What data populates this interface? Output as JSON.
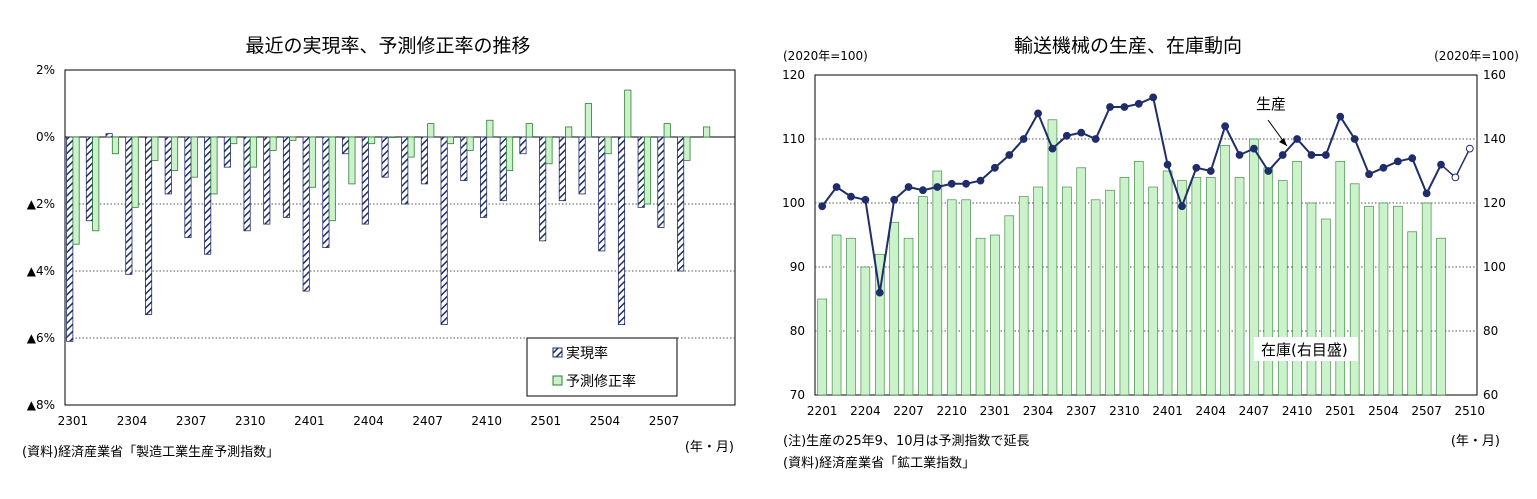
{
  "colors": {
    "navy": "#1f2d6b",
    "green_fill": "#ccf2cc",
    "green_edge": "#2e7d32",
    "grid": "#000000"
  },
  "chart_data": [
    {
      "type": "bar",
      "title": "最近の実現率、予測修正率の推移",
      "ylim": [
        -8,
        2
      ],
      "y_ticks": [
        {
          "value": 2,
          "label": "2%"
        },
        {
          "value": 0,
          "label": "0%"
        },
        {
          "value": -2,
          "label": "▲2%"
        },
        {
          "value": -4,
          "label": "▲4%"
        },
        {
          "value": -6,
          "label": "▲6%"
        },
        {
          "value": -8,
          "label": "▲8%"
        }
      ],
      "x_tick_labels": [
        "2301",
        "2304",
        "2307",
        "2310",
        "2401",
        "2404",
        "2407",
        "2410",
        "2501",
        "2504",
        "2507"
      ],
      "categories": [
        "2301",
        "2302",
        "2303",
        "2304",
        "2305",
        "2306",
        "2307",
        "2308",
        "2309",
        "2310",
        "2311",
        "2312",
        "2401",
        "2402",
        "2403",
        "2404",
        "2405",
        "2406",
        "2407",
        "2408",
        "2409",
        "2410",
        "2411",
        "2412",
        "2501",
        "2502",
        "2503",
        "2504",
        "2505",
        "2506",
        "2507",
        "2508",
        "2509",
        "2510"
      ],
      "series": [
        {
          "name": "実現率",
          "values": [
            -6.1,
            -2.5,
            0.1,
            -4.1,
            -5.3,
            -1.7,
            -3.0,
            -3.5,
            -0.9,
            -2.8,
            -2.6,
            -2.4,
            -4.6,
            -3.3,
            -0.5,
            -2.6,
            -1.2,
            -2.0,
            -1.4,
            -5.6,
            -1.3,
            -2.4,
            -1.9,
            -0.5,
            -3.1,
            -1.9,
            -1.7,
            -3.4,
            -5.6,
            -2.1,
            -2.7,
            -4.0,
            null,
            null
          ]
        },
        {
          "name": "予測修正率",
          "values": [
            -3.2,
            -2.8,
            -0.5,
            -2.1,
            -0.7,
            -1.0,
            -1.2,
            -1.7,
            -0.2,
            -0.9,
            -0.4,
            -0.1,
            -1.5,
            -2.5,
            -1.4,
            -0.2,
            0.0,
            -0.6,
            0.4,
            -0.2,
            -0.4,
            0.5,
            -1.0,
            0.4,
            -0.8,
            0.3,
            1.0,
            -0.5,
            1.4,
            -2.0,
            0.4,
            -0.7,
            0.3,
            null
          ]
        }
      ],
      "x_unit": "(年・月)",
      "source": "(資料)経済産業省「製造工業生産予測指数」"
    },
    {
      "type": "bar+line",
      "title": "輸送機械の生産、在庫動向",
      "left_unit": "(2020年=100)",
      "right_unit": "(2020年=100)",
      "left_ylim": [
        70,
        120
      ],
      "right_ylim": [
        60,
        160
      ],
      "left_ticks": [
        "120",
        "110",
        "100",
        "90",
        "80",
        "70"
      ],
      "right_ticks": [
        "160",
        "140",
        "120",
        "100",
        "80",
        "60"
      ],
      "x_tick_labels": [
        "2201",
        "2204",
        "2207",
        "2210",
        "2301",
        "2304",
        "2307",
        "2310",
        "2401",
        "2404",
        "2407",
        "2410",
        "2501",
        "2504",
        "2507",
        "2510"
      ],
      "categories": [
        "2201",
        "2202",
        "2203",
        "2204",
        "2205",
        "2206",
        "2207",
        "2208",
        "2209",
        "2210",
        "2211",
        "2212",
        "2301",
        "2302",
        "2303",
        "2304",
        "2305",
        "2306",
        "2307",
        "2308",
        "2309",
        "2310",
        "2311",
        "2312",
        "2401",
        "2402",
        "2403",
        "2404",
        "2405",
        "2406",
        "2407",
        "2408",
        "2409",
        "2410",
        "2411",
        "2412",
        "2501",
        "2502",
        "2503",
        "2504",
        "2505",
        "2506",
        "2507",
        "2508",
        "2509",
        "2510"
      ],
      "series": [
        {
          "name": "在庫(右目盛)",
          "axis": "right",
          "values": [
            90,
            110,
            109,
            100,
            104,
            114,
            109,
            122,
            130,
            121,
            121,
            109,
            110,
            116,
            122,
            125,
            146,
            125,
            131,
            121,
            124,
            128,
            133,
            125,
            130,
            127,
            128,
            128,
            138,
            128,
            140,
            131,
            127,
            133,
            120,
            115,
            133,
            126,
            119,
            120,
            119,
            111,
            120,
            109,
            null,
            null
          ]
        },
        {
          "name": "生産",
          "axis": "left",
          "values": [
            99.5,
            102.5,
            101.0,
            100.5,
            86.0,
            100.5,
            102.5,
            102.0,
            102.5,
            103.0,
            103.0,
            103.5,
            105.5,
            107.5,
            110.0,
            114.0,
            108.5,
            110.5,
            111.0,
            110.0,
            115.0,
            115.0,
            115.5,
            116.5,
            106.0,
            99.5,
            105.5,
            105.0,
            112.0,
            107.5,
            108.5,
            105.0,
            107.5,
            110.0,
            107.5,
            107.5,
            113.5,
            110.0,
            104.5,
            105.5,
            106.5,
            107.0,
            101.5,
            106.0,
            104.0,
            108.5
          ],
          "forecast_from_index": 44
        }
      ],
      "annotations": [
        "生産",
        "在庫(右目盛)"
      ],
      "x_unit": "(年・月)",
      "notes": [
        "(注)生産の25年9、10月は予測指数で延長",
        "(資料)経済産業省「鉱工業指数」"
      ]
    }
  ]
}
